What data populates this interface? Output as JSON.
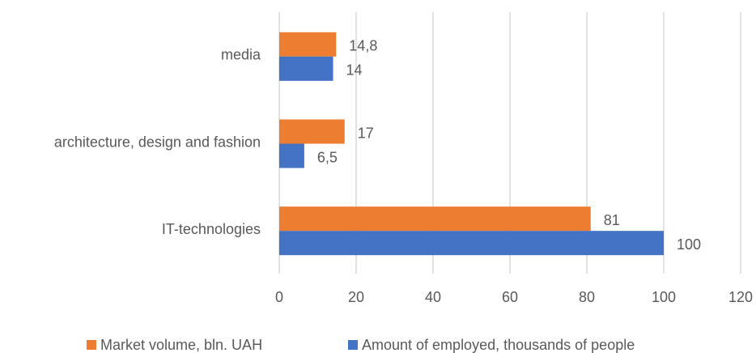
{
  "chart_data": {
    "type": "hbar",
    "categories": [
      "media",
      "architecture, design and fashion",
      "IT-technologies"
    ],
    "series": [
      {
        "name": "Market volume, bln. UAH",
        "color": "#ed7d31",
        "values": [
          14.8,
          17,
          81
        ],
        "value_labels": [
          "14,8",
          "17",
          "81"
        ]
      },
      {
        "name": "Amount of employed, thousands of people",
        "color": "#4472c4",
        "values": [
          14,
          6.5,
          100
        ],
        "value_labels": [
          "14",
          "6,5",
          "100"
        ]
      }
    ],
    "xlim": [
      0,
      120
    ],
    "xticks": [
      0,
      20,
      40,
      60,
      80,
      100,
      120
    ],
    "grid": true,
    "legend": "bottom"
  }
}
